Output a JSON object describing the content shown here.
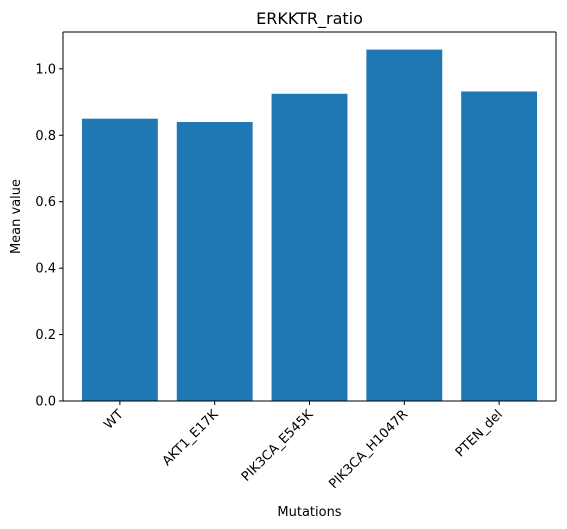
{
  "chart_data": {
    "type": "bar",
    "title": "ERKKTR_ratio",
    "xlabel": "Mutations",
    "ylabel": "Mean value",
    "categories": [
      "WT",
      "AKT1_E17K",
      "PIK3CA_E545K",
      "PIK3CA_H1047R",
      "PTEN_del"
    ],
    "values": [
      0.85,
      0.84,
      0.925,
      1.058,
      0.932
    ],
    "ylim": [
      0,
      1.111
    ],
    "yticks": [
      0.0,
      0.2,
      0.4,
      0.6,
      0.8,
      1.0
    ],
    "ytick_labels": [
      "0.0",
      "0.2",
      "0.4",
      "0.6",
      "0.8",
      "1.0"
    ],
    "bar_color": "#1f77b4",
    "grid": false,
    "legend": false
  }
}
